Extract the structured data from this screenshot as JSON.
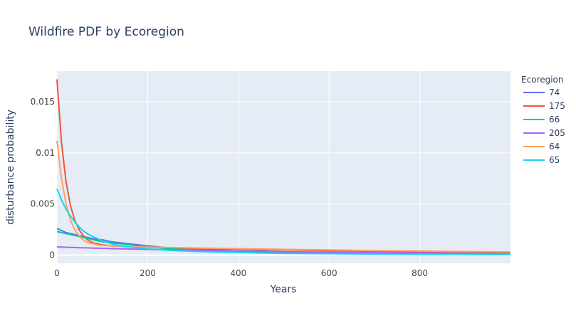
{
  "chart_data": {
    "type": "line",
    "title": "Wildfire PDF by Ecoregion",
    "xlabel": "Years",
    "ylabel": "disturbance probability",
    "xlim": [
      0,
      1000
    ],
    "ylim": [
      -0.0008,
      0.018
    ],
    "x_ticks": [
      0,
      200,
      400,
      600,
      800
    ],
    "x_tick_labels": [
      "0",
      "200",
      "400",
      "600",
      "800"
    ],
    "y_ticks": [
      0,
      0.005,
      0.01,
      0.015
    ],
    "y_tick_labels": [
      "0",
      "0.005",
      "0.01",
      "0.015"
    ],
    "grid": true,
    "legend": {
      "title": "Ecoregion",
      "placement": "right"
    },
    "x": [
      0,
      10,
      20,
      30,
      40,
      50,
      60,
      70,
      80,
      90,
      100,
      120,
      140,
      160,
      180,
      200,
      250,
      300,
      350,
      400,
      450,
      500,
      550,
      600,
      650,
      700,
      750,
      800,
      850,
      900,
      950,
      1000
    ],
    "series": [
      {
        "name": "74",
        "color": "#636efa",
        "values": [
          0.0026,
          0.0024,
          0.0022,
          0.0021,
          0.002,
          0.0019,
          0.0018,
          0.0017,
          0.0016,
          0.0015,
          0.0015,
          0.0013,
          0.0012,
          0.0011,
          0.001,
          0.0009,
          0.0007,
          0.0006,
          0.0005,
          0.0004,
          0.0004,
          0.0003,
          0.0003,
          0.0003,
          0.0002,
          0.0002,
          0.0002,
          0.0002,
          0.0002,
          0.0001,
          0.0001,
          0.0001
        ]
      },
      {
        "name": "175",
        "color": "#ef553b",
        "values": [
          0.0172,
          0.011,
          0.0072,
          0.0048,
          0.0033,
          0.0024,
          0.0018,
          0.0014,
          0.0012,
          0.0011,
          0.001,
          0.0009,
          0.00085,
          0.0008,
          0.00078,
          0.00075,
          0.0007,
          0.00065,
          0.0006,
          0.00057,
          0.00053,
          0.0005,
          0.00047,
          0.00044,
          0.00041,
          0.00038,
          0.00035,
          0.00033,
          0.00031,
          0.00029,
          0.00027,
          0.00025
        ]
      },
      {
        "name": "66",
        "color": "#00cc96",
        "values": [
          0.0023,
          0.0022,
          0.0021,
          0.002,
          0.0019,
          0.0018,
          0.0017,
          0.0016,
          0.0015,
          0.0014,
          0.0013,
          0.0012,
          0.0011,
          0.001,
          0.0009,
          0.0008,
          0.0006,
          0.0005,
          0.0004,
          0.0004,
          0.0003,
          0.0003,
          0.0002,
          0.0002,
          0.0002,
          0.0002,
          0.0001,
          0.0001,
          0.0001,
          0.0001,
          0.0001,
          0.0001
        ]
      },
      {
        "name": "205",
        "color": "#ab63fa",
        "values": [
          0.0008,
          0.00078,
          0.00077,
          0.00075,
          0.00074,
          0.00072,
          0.00071,
          0.0007,
          0.00068,
          0.00067,
          0.00066,
          0.00063,
          0.00061,
          0.00059,
          0.00057,
          0.00055,
          0.0005,
          0.00046,
          0.00042,
          0.00039,
          0.00036,
          0.00033,
          0.0003,
          0.00028,
          0.00026,
          0.00024,
          0.00022,
          0.0002,
          0.00019,
          0.00017,
          0.00016,
          0.00015
        ]
      },
      {
        "name": "64",
        "color": "#ffa15a",
        "values": [
          0.0112,
          0.0075,
          0.005,
          0.0034,
          0.0024,
          0.0018,
          0.0014,
          0.0012,
          0.0011,
          0.001,
          0.00095,
          0.0009,
          0.00085,
          0.00082,
          0.0008,
          0.00078,
          0.00074,
          0.0007,
          0.00066,
          0.00063,
          0.0006,
          0.00056,
          0.00053,
          0.0005,
          0.00047,
          0.00044,
          0.00042,
          0.0004,
          0.00037,
          0.00035,
          0.00033,
          0.00031
        ]
      },
      {
        "name": "65",
        "color": "#19d3f3",
        "values": [
          0.0065,
          0.0054,
          0.0045,
          0.0038,
          0.0032,
          0.0027,
          0.0023,
          0.002,
          0.0018,
          0.0016,
          0.0014,
          0.0011,
          0.0009,
          0.0008,
          0.0007,
          0.0006,
          0.00045,
          0.00037,
          0.0003,
          0.00025,
          0.0002,
          0.00017,
          0.00015,
          0.00013,
          0.00011,
          0.0001,
          9e-05,
          8e-05,
          7e-05,
          6e-05,
          5e-05,
          5e-05
        ]
      }
    ]
  },
  "colors": {
    "plot_background": "#e5ecf6",
    "grid": "#ffffff",
    "text": "#2a3f5f",
    "tick_text": "#444444"
  }
}
